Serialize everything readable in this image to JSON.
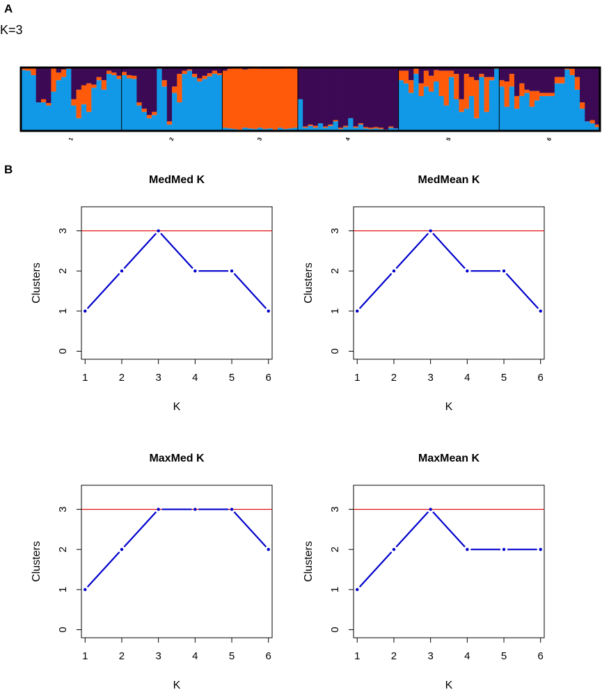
{
  "panel_a": {
    "label": "A",
    "k_label": "K=3",
    "colors": {
      "cluster1": "#1199e8",
      "cluster2": "#ff5a0a",
      "cluster3": "#3c0a55"
    },
    "pop_labels": [
      "1",
      "2",
      "3",
      "4",
      "5",
      "6"
    ],
    "individuals_per_pop": [
      20,
      20,
      15,
      20,
      20,
      20
    ]
  },
  "panel_b": {
    "label": "B",
    "plots": [
      {
        "title": "MedMed K",
        "xlabel": "K",
        "ylabel": "Clusters",
        "x_ticks": [
          "1",
          "2",
          "3",
          "4",
          "5",
          "6"
        ],
        "y_ticks": [
          "0",
          "1",
          "2",
          "3"
        ]
      },
      {
        "title": "MedMean K",
        "xlabel": "K",
        "ylabel": "Clusters",
        "x_ticks": [
          "1",
          "2",
          "3",
          "4",
          "5",
          "6"
        ],
        "y_ticks": [
          "0",
          "1",
          "2",
          "3"
        ]
      },
      {
        "title": "MaxMed K",
        "xlabel": "K",
        "ylabel": "Clusters",
        "x_ticks": [
          "1",
          "2",
          "3",
          "4",
          "5",
          "6"
        ],
        "y_ticks": [
          "0",
          "1",
          "2",
          "3"
        ]
      },
      {
        "title": "MaxMean K",
        "xlabel": "K",
        "ylabel": "Clusters",
        "x_ticks": [
          "1",
          "2",
          "3",
          "4",
          "5",
          "6"
        ],
        "y_ticks": [
          "0",
          "1",
          "2",
          "3"
        ]
      }
    ]
  },
  "chart_data": [
    {
      "type": "bar",
      "subtype": "stacked-admixture",
      "title": "K=3",
      "categories": [
        "1",
        "2",
        "3",
        "4",
        "5",
        "6"
      ],
      "series_names": [
        "cluster1 (blue)",
        "cluster2 (orange)",
        "cluster3 (purple)"
      ],
      "series_colors": [
        "#1199e8",
        "#ff5a0a",
        "#3c0a55"
      ],
      "individuals": [
        [
          0.96,
          0.04,
          0
        ],
        [
          0.95,
          0.05,
          0
        ],
        [
          0.88,
          0.12,
          0
        ],
        [
          0.45,
          0,
          0.55
        ],
        [
          0.45,
          0.05,
          0.5
        ],
        [
          0.4,
          0.04,
          0.56
        ],
        [
          0.62,
          0.38,
          0
        ],
        [
          0.8,
          0.12,
          0.08
        ],
        [
          0.85,
          0.12,
          0.03
        ],
        [
          0.98,
          0.02,
          0
        ],
        [
          0.4,
          0.1,
          0.5
        ],
        [
          0.2,
          0.45,
          0.35
        ],
        [
          0.42,
          0.3,
          0.28
        ],
        [
          0.3,
          0.45,
          0.25
        ],
        [
          0.68,
          0.05,
          0.27
        ],
        [
          0.8,
          0.05,
          0.15
        ],
        [
          0.65,
          0.15,
          0.2
        ],
        [
          0.9,
          0.05,
          0.05
        ],
        [
          0.88,
          0.04,
          0.08
        ],
        [
          0.82,
          0.05,
          0.13
        ],
        [
          0.88,
          0.05,
          0.07
        ],
        [
          0.83,
          0.05,
          0.12
        ],
        [
          0.82,
          0.05,
          0.13
        ],
        [
          0.4,
          0.05,
          0.55
        ],
        [
          0.3,
          0.05,
          0.65
        ],
        [
          0.2,
          0.05,
          0.75
        ],
        [
          0.25,
          0.05,
          0.7
        ],
        [
          0.98,
          0.02,
          0
        ],
        [
          0.7,
          0.1,
          0.2
        ],
        [
          0.1,
          0.05,
          0.85
        ],
        [
          0.6,
          0.1,
          0.3
        ],
        [
          0.45,
          0.45,
          0.1
        ],
        [
          0.9,
          0.05,
          0.05
        ],
        [
          0.95,
          0.02,
          0.03
        ],
        [
          0.85,
          0.05,
          0.1
        ],
        [
          0.78,
          0.05,
          0.17
        ],
        [
          0.82,
          0.05,
          0.13
        ],
        [
          0.86,
          0.05,
          0.09
        ],
        [
          0.9,
          0.05,
          0.05
        ],
        [
          0.88,
          0.03,
          0.09
        ],
        [
          0.05,
          0.9,
          0.05
        ],
        [
          0.04,
          0.94,
          0.02
        ],
        [
          0.03,
          0.96,
          0.01
        ],
        [
          0.02,
          0.97,
          0.01
        ],
        [
          0.05,
          0.92,
          0.03
        ],
        [
          0.04,
          0.94,
          0.02
        ],
        [
          0.03,
          0.96,
          0.01
        ],
        [
          0.05,
          0.93,
          0.02
        ],
        [
          0.03,
          0.95,
          0.02
        ],
        [
          0.04,
          0.94,
          0.02
        ],
        [
          0.02,
          0.96,
          0.02
        ],
        [
          0.05,
          0.93,
          0.02
        ],
        [
          0.03,
          0.96,
          0.01
        ],
        [
          0.04,
          0.95,
          0.01
        ],
        [
          0.05,
          0.93,
          0.02
        ],
        [
          0.5,
          0,
          0.5
        ],
        [
          0.05,
          0.02,
          0.93
        ],
        [
          0.08,
          0.02,
          0.9
        ],
        [
          0.05,
          0.03,
          0.92
        ],
        [
          0.12,
          0,
          0.88
        ],
        [
          0.05,
          0.02,
          0.93
        ],
        [
          0.08,
          0.02,
          0.9
        ],
        [
          0.15,
          0.02,
          0.83
        ],
        [
          0.03,
          0.02,
          0.95
        ],
        [
          0.06,
          0.02,
          0.92
        ],
        [
          0.2,
          0,
          0.8
        ],
        [
          0.05,
          0.02,
          0.93
        ],
        [
          0.1,
          0.02,
          0.88
        ],
        [
          0.04,
          0.02,
          0.94
        ],
        [
          0.03,
          0.02,
          0.95
        ],
        [
          0.04,
          0.02,
          0.94
        ],
        [
          0.03,
          0.02,
          0.95
        ],
        [
          0.02,
          0,
          0.98
        ],
        [
          0.05,
          0.02,
          0.93
        ],
        [
          0.04,
          0,
          0.96
        ],
        [
          0.8,
          0.15,
          0.05
        ],
        [
          0.75,
          0.2,
          0.05
        ],
        [
          0.6,
          0.2,
          0.2
        ],
        [
          0.9,
          0.08,
          0.02
        ],
        [
          0.55,
          0.2,
          0.25
        ],
        [
          0.7,
          0.25,
          0.05
        ],
        [
          0.62,
          0.25,
          0.13
        ],
        [
          0.78,
          0.18,
          0.04
        ],
        [
          0.55,
          0.4,
          0.05
        ],
        [
          0.4,
          0.55,
          0.05
        ],
        [
          0.85,
          0.1,
          0.05
        ],
        [
          0.5,
          0.4,
          0.1
        ],
        [
          0.3,
          0.2,
          0.5
        ],
        [
          0.35,
          0.55,
          0.1
        ],
        [
          0.55,
          0.3,
          0.15
        ],
        [
          0.2,
          0.6,
          0.2
        ],
        [
          0.85,
          0.05,
          0.1
        ],
        [
          0.3,
          0.55,
          0.15
        ],
        [
          0.8,
          0.05,
          0.15
        ],
        [
          0.98,
          0.02,
          0
        ],
        [
          0.7,
          0.1,
          0.2
        ],
        [
          0.38,
          0.4,
          0.22
        ],
        [
          0.7,
          0.2,
          0.1
        ],
        [
          0.35,
          0.2,
          0.45
        ],
        [
          0.55,
          0.2,
          0.25
        ],
        [
          0.6,
          0.05,
          0.35
        ],
        [
          0.38,
          0.25,
          0.37
        ],
        [
          0.48,
          0.15,
          0.37
        ],
        [
          0.55,
          0.05,
          0.4
        ],
        [
          0.55,
          0.05,
          0.4
        ],
        [
          0.55,
          0.05,
          0.4
        ],
        [
          0.75,
          0.1,
          0.15
        ],
        [
          0.75,
          0.1,
          0.15
        ],
        [
          0.97,
          0.03,
          0
        ],
        [
          0.88,
          0.1,
          0.02
        ],
        [
          0.65,
          0.2,
          0.15
        ],
        [
          0.35,
          0.1,
          0.55
        ],
        [
          0.15,
          0,
          0.85
        ],
        [
          0.12,
          0.05,
          0.83
        ],
        [
          0.06,
          0.04,
          0.9
        ]
      ]
    },
    {
      "type": "line",
      "title": "MedMed K",
      "x": [
        1,
        2,
        3,
        4,
        5,
        6
      ],
      "series": [
        {
          "name": "Clusters",
          "values": [
            1,
            2,
            3,
            2,
            2,
            1
          ]
        }
      ],
      "reference_line": {
        "y": 3,
        "color": "#e00000"
      },
      "xlabel": "K",
      "ylabel": "Clusters",
      "xlim": [
        0.9,
        6.1
      ],
      "ylim": [
        -0.2,
        3.6
      ]
    },
    {
      "type": "line",
      "title": "MedMean K",
      "x": [
        1,
        2,
        3,
        4,
        5,
        6
      ],
      "series": [
        {
          "name": "Clusters",
          "values": [
            1,
            2,
            3,
            2,
            2,
            1
          ]
        }
      ],
      "reference_line": {
        "y": 3,
        "color": "#e00000"
      },
      "xlabel": "K",
      "ylabel": "Clusters",
      "xlim": [
        0.9,
        6.1
      ],
      "ylim": [
        -0.2,
        3.6
      ]
    },
    {
      "type": "line",
      "title": "MaxMed K",
      "x": [
        1,
        2,
        3,
        4,
        5,
        6
      ],
      "series": [
        {
          "name": "Clusters",
          "values": [
            1,
            2,
            3,
            3,
            3,
            2
          ]
        }
      ],
      "reference_line": {
        "y": 3,
        "color": "#e00000"
      },
      "xlabel": "K",
      "ylabel": "Clusters",
      "xlim": [
        0.9,
        6.1
      ],
      "ylim": [
        -0.2,
        3.6
      ]
    },
    {
      "type": "line",
      "title": "MaxMean K",
      "x": [
        1,
        2,
        3,
        4,
        5,
        6
      ],
      "series": [
        {
          "name": "Clusters",
          "values": [
            1,
            2,
            3,
            2,
            2,
            2
          ]
        }
      ],
      "reference_line": {
        "y": 3,
        "color": "#e00000"
      },
      "xlabel": "K",
      "ylabel": "Clusters",
      "xlim": [
        0.9,
        6.1
      ],
      "ylim": [
        -0.2,
        3.6
      ]
    }
  ]
}
